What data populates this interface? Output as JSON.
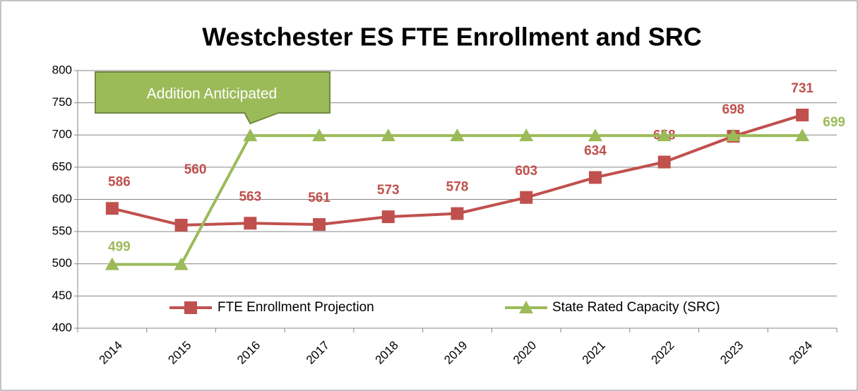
{
  "chart_data": {
    "type": "line",
    "title": "Westchester ES FTE Enrollment and SRC",
    "categories": [
      "2014",
      "2015",
      "2016",
      "2017",
      "2018",
      "2019",
      "2020",
      "2021",
      "2022",
      "2023",
      "2024"
    ],
    "series": [
      {
        "name": "FTE Enrollment Projection",
        "color": "#c0504d",
        "values": [
          586,
          560,
          563,
          561,
          573,
          578,
          603,
          634,
          658,
          698,
          731
        ]
      },
      {
        "name": "State Rated Capacity (SRC)",
        "color": "#9bbb59",
        "values": [
          499,
          499,
          699,
          699,
          699,
          699,
          699,
          699,
          699,
          699,
          699
        ]
      }
    ],
    "annotation": "Addition Anticipated",
    "ylim": [
      400,
      800
    ],
    "yticks": [
      400,
      450,
      500,
      550,
      600,
      650,
      700,
      750,
      800
    ],
    "grid": true
  }
}
